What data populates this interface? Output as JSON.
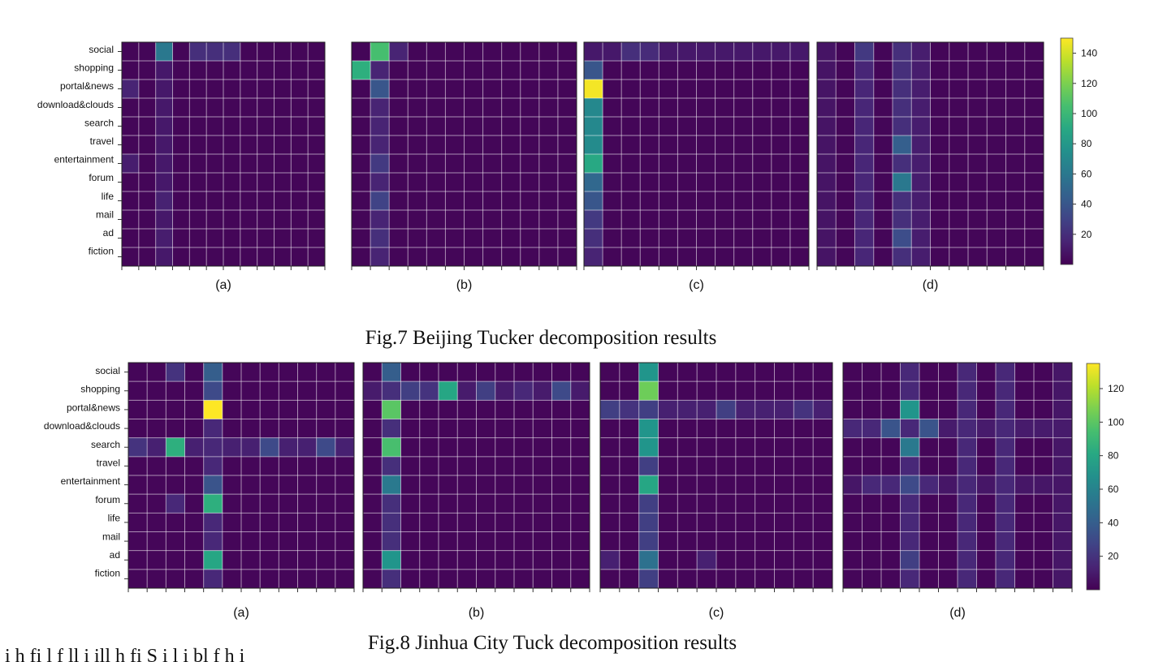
{
  "figures": [
    {
      "caption": "Fig.7 Beijing Tucker decomposition results",
      "colorbar": {
        "ticks": [
          20,
          40,
          60,
          80,
          100,
          120,
          140
        ],
        "max": 150
      },
      "panel_labels": [
        "(a)",
        "(b)",
        "(c)",
        "(d)"
      ]
    },
    {
      "caption": "Fig.8 Jinhua City Tuck decomposition results",
      "colorbar": {
        "ticks": [
          20,
          40,
          60,
          80,
          100,
          120
        ],
        "max": 135
      },
      "panel_labels": [
        "(a)",
        "(b)",
        "(c)",
        "(d)"
      ]
    }
  ],
  "row_labels": [
    "social",
    "shopping",
    "portal&news",
    "download&clouds",
    "search",
    "travel",
    "entertainment",
    "forum",
    "life",
    "mail",
    "ad",
    "fiction"
  ],
  "footer_text": "i                   h              fi                                          l    f ll    i                 ill                      h          fi     S  i l                            i   bl    f        h    i",
  "chart_data": [
    {
      "type": "heatmap",
      "title": "Fig.7 Beijing Tucker decomposition results",
      "panel": "(a)",
      "rows": [
        "social",
        "shopping",
        "portal&news",
        "download&clouds",
        "search",
        "travel",
        "entertainment",
        "forum",
        "life",
        "mail",
        "ad",
        "fiction"
      ],
      "cols": 12,
      "vmin": 0,
      "vmax": 150,
      "colormap": "viridis",
      "cells": [
        [
          0,
          2,
          60
        ],
        [
          0,
          4,
          20
        ],
        [
          0,
          5,
          20
        ],
        [
          0,
          6,
          20
        ],
        [
          2,
          0,
          15
        ],
        [
          6,
          0,
          12
        ],
        [
          8,
          2,
          14
        ],
        [
          10,
          2,
          12
        ]
      ],
      "col_bands": [
        [
          2,
          10
        ]
      ],
      "row_bands": []
    },
    {
      "type": "heatmap",
      "title": "Fig.7 Beijing Tucker decomposition results",
      "panel": "(b)",
      "rows": [
        "social",
        "shopping",
        "portal&news",
        "download&clouds",
        "search",
        "travel",
        "entertainment",
        "forum",
        "life",
        "mail",
        "ad",
        "fiction"
      ],
      "cols": 12,
      "vmin": 0,
      "vmax": 150,
      "colormap": "viridis",
      "cells": [
        [
          0,
          1,
          105
        ],
        [
          1,
          0,
          95
        ],
        [
          0,
          2,
          15
        ],
        [
          2,
          1,
          40
        ],
        [
          6,
          1,
          25
        ],
        [
          8,
          1,
          30
        ],
        [
          10,
          1,
          20
        ]
      ],
      "col_bands": [
        [
          1,
          15
        ]
      ],
      "row_bands": []
    },
    {
      "type": "heatmap",
      "title": "Fig.7 Beijing Tucker decomposition results",
      "panel": "(c)",
      "rows": [
        "social",
        "shopping",
        "portal&news",
        "download&clouds",
        "search",
        "travel",
        "entertainment",
        "forum",
        "life",
        "mail",
        "ad",
        "fiction"
      ],
      "cols": 12,
      "vmin": 0,
      "vmax": 150,
      "colormap": "viridis",
      "cells": [
        [
          2,
          0,
          148
        ],
        [
          1,
          0,
          40
        ],
        [
          3,
          0,
          70
        ],
        [
          4,
          0,
          70
        ],
        [
          5,
          0,
          72
        ],
        [
          6,
          0,
          90
        ],
        [
          7,
          0,
          50
        ],
        [
          8,
          0,
          40
        ],
        [
          9,
          0,
          25
        ],
        [
          10,
          0,
          20
        ],
        [
          11,
          0,
          15
        ],
        [
          0,
          2,
          20
        ],
        [
          0,
          3,
          18
        ]
      ],
      "col_bands": [],
      "row_bands": [
        [
          0,
          10
        ]
      ]
    },
    {
      "type": "heatmap",
      "title": "Fig.7 Beijing Tucker decomposition results",
      "panel": "(d)",
      "rows": [
        "social",
        "shopping",
        "portal&news",
        "download&clouds",
        "search",
        "travel",
        "entertainment",
        "forum",
        "life",
        "mail",
        "ad",
        "fiction"
      ],
      "cols": 12,
      "vmin": 0,
      "vmax": 150,
      "colormap": "viridis",
      "cells": [
        [
          5,
          4,
          45
        ],
        [
          7,
          4,
          60
        ],
        [
          10,
          4,
          35
        ],
        [
          0,
          2,
          25
        ]
      ],
      "col_bands": [
        [
          2,
          16
        ],
        [
          4,
          20
        ],
        [
          5,
          12
        ],
        [
          0,
          8
        ]
      ],
      "row_bands": []
    },
    {
      "type": "heatmap",
      "title": "Fig.8 Jinhua City Tuck decomposition results",
      "panel": "(a)",
      "rows": [
        "social",
        "shopping",
        "portal&news",
        "download&clouds",
        "search",
        "travel",
        "entertainment",
        "forum",
        "life",
        "mail",
        "ad",
        "fiction"
      ],
      "cols": 12,
      "vmin": 0,
      "vmax": 135,
      "colormap": "viridis",
      "cells": [
        [
          2,
          4,
          135
        ],
        [
          4,
          2,
          85
        ],
        [
          7,
          4,
          85
        ],
        [
          10,
          4,
          80
        ],
        [
          0,
          4,
          40
        ],
        [
          1,
          4,
          30
        ],
        [
          4,
          7,
          30
        ],
        [
          4,
          10,
          30
        ],
        [
          4,
          0,
          20
        ],
        [
          6,
          4,
          35
        ],
        [
          0,
          2,
          20
        ],
        [
          7,
          2,
          15
        ]
      ],
      "col_bands": [
        [
          4,
          15
        ]
      ],
      "row_bands": [
        [
          4,
          12
        ]
      ]
    },
    {
      "type": "heatmap",
      "title": "Fig.8 Jinhua City Tuck decomposition results",
      "panel": "(b)",
      "rows": [
        "social",
        "shopping",
        "portal&news",
        "download&clouds",
        "search",
        "travel",
        "entertainment",
        "forum",
        "life",
        "mail",
        "ad",
        "fiction"
      ],
      "cols": 12,
      "vmin": 0,
      "vmax": 135,
      "colormap": "viridis",
      "cells": [
        [
          2,
          1,
          100
        ],
        [
          4,
          1,
          95
        ],
        [
          6,
          1,
          55
        ],
        [
          10,
          1,
          70
        ],
        [
          0,
          1,
          40
        ],
        [
          1,
          4,
          80
        ],
        [
          1,
          2,
          25
        ],
        [
          1,
          3,
          20
        ],
        [
          1,
          6,
          25
        ],
        [
          1,
          10,
          30
        ],
        [
          1,
          8,
          15
        ]
      ],
      "col_bands": [
        [
          1,
          18
        ]
      ],
      "row_bands": [
        [
          1,
          10
        ]
      ]
    },
    {
      "type": "heatmap",
      "title": "Fig.8 Jinhua City Tuck decomposition results",
      "panel": "(c)",
      "rows": [
        "social",
        "shopping",
        "portal&news",
        "download&clouds",
        "search",
        "travel",
        "entertainment",
        "forum",
        "life",
        "mail",
        "ad",
        "fiction"
      ],
      "cols": 12,
      "vmin": 0,
      "vmax": 135,
      "colormap": "viridis",
      "cells": [
        [
          0,
          2,
          70
        ],
        [
          1,
          2,
          105
        ],
        [
          3,
          2,
          70
        ],
        [
          4,
          2,
          70
        ],
        [
          6,
          2,
          80
        ],
        [
          10,
          2,
          50
        ],
        [
          2,
          0,
          25
        ],
        [
          2,
          1,
          20
        ],
        [
          2,
          6,
          25
        ],
        [
          2,
          10,
          20
        ],
        [
          10,
          0,
          12
        ],
        [
          10,
          5,
          12
        ]
      ],
      "col_bands": [
        [
          2,
          25
        ]
      ],
      "row_bands": [
        [
          2,
          12
        ]
      ]
    },
    {
      "type": "heatmap",
      "title": "Fig.8 Jinhua City Tuck decomposition results",
      "panel": "(d)",
      "rows": [
        "social",
        "shopping",
        "portal&news",
        "download&clouds",
        "search",
        "travel",
        "entertainment",
        "forum",
        "life",
        "mail",
        "ad",
        "fiction"
      ],
      "cols": 12,
      "vmin": 0,
      "vmax": 135,
      "colormap": "viridis",
      "cells": [
        [
          2,
          3,
          70
        ],
        [
          3,
          2,
          35
        ],
        [
          3,
          4,
          35
        ],
        [
          4,
          3,
          55
        ],
        [
          6,
          3,
          30
        ],
        [
          10,
          3,
          25
        ],
        [
          3,
          0,
          15
        ],
        [
          3,
          1,
          15
        ],
        [
          6,
          1,
          15
        ],
        [
          6,
          2,
          15
        ],
        [
          6,
          4,
          15
        ]
      ],
      "col_bands": [
        [
          3,
          15
        ],
        [
          6,
          15
        ],
        [
          8,
          15
        ],
        [
          11,
          8
        ]
      ],
      "row_bands": [
        [
          3,
          10
        ],
        [
          6,
          8
        ]
      ]
    }
  ]
}
